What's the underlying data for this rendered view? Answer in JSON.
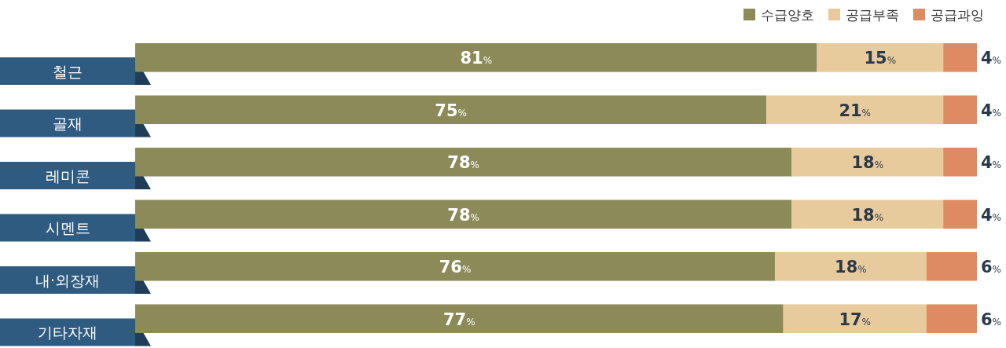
{
  "chart_data": {
    "type": "bar",
    "orientation": "horizontal",
    "stacked": true,
    "categories": [
      "철근",
      "골재",
      "레미콘",
      "시멘트",
      "내·외장재",
      "기타자재"
    ],
    "series": [
      {
        "name": "수급양호",
        "color": "#8b8a58",
        "values": [
          81,
          75,
          78,
          78,
          76,
          77
        ],
        "value_labels": [
          "81%",
          "75%",
          "78%",
          "78%",
          "76%",
          "77%"
        ]
      },
      {
        "name": "공급부족",
        "color": "#e8cb9c",
        "values": [
          15,
          21,
          18,
          18,
          18,
          17
        ],
        "value_labels": [
          "15%",
          "21%",
          "18%",
          "18%",
          "18%",
          "17%"
        ]
      },
      {
        "name": "공급과잉",
        "color": "#de8a62",
        "values": [
          4,
          4,
          4,
          4,
          6,
          6
        ],
        "value_labels": [
          "4%",
          "4%",
          "4%",
          "4%",
          "6%",
          "6%"
        ]
      }
    ],
    "legend": "top right"
  }
}
